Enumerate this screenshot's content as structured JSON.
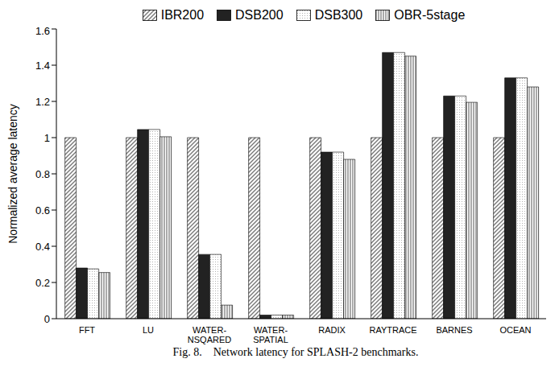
{
  "chart_data": {
    "type": "bar",
    "title": "Fig. 8.    Network latency for SPLASH-2 benchmarks.",
    "y_label": "Normalized average latency",
    "categories": [
      "FFT",
      "LU",
      "WATER-NSQARED",
      "WATER-SPATIAL",
      "RADIX",
      "RAYTRACE",
      "BARNES",
      "OCEAN"
    ],
    "series": [
      {
        "name": "IBR200",
        "color": "#777777",
        "values": [
          1,
          1,
          1,
          1,
          1,
          1,
          1,
          1
        ]
      },
      {
        "name": "DSB200",
        "color": "#222222",
        "values": [
          0.28,
          1.045,
          0.355,
          0.02,
          0.92,
          1.47,
          1.23,
          1.33
        ]
      },
      {
        "name": "DSB300",
        "color": "#b0b0b0",
        "values": [
          0.275,
          1.045,
          0.355,
          0.02,
          0.92,
          1.47,
          1.23,
          1.33
        ]
      },
      {
        "name": "OBR-5stage",
        "color": "#555555",
        "values": [
          0.255,
          1.005,
          0.075,
          0.02,
          0.88,
          1.45,
          1.195,
          1.28
        ]
      }
    ],
    "ylim": [
      0,
      1.6
    ],
    "yticks": [
      0,
      0.2,
      0.4,
      0.6,
      0.8,
      1,
      1.2,
      1.4,
      1.6
    ],
    "legend": "top",
    "grid": false
  }
}
